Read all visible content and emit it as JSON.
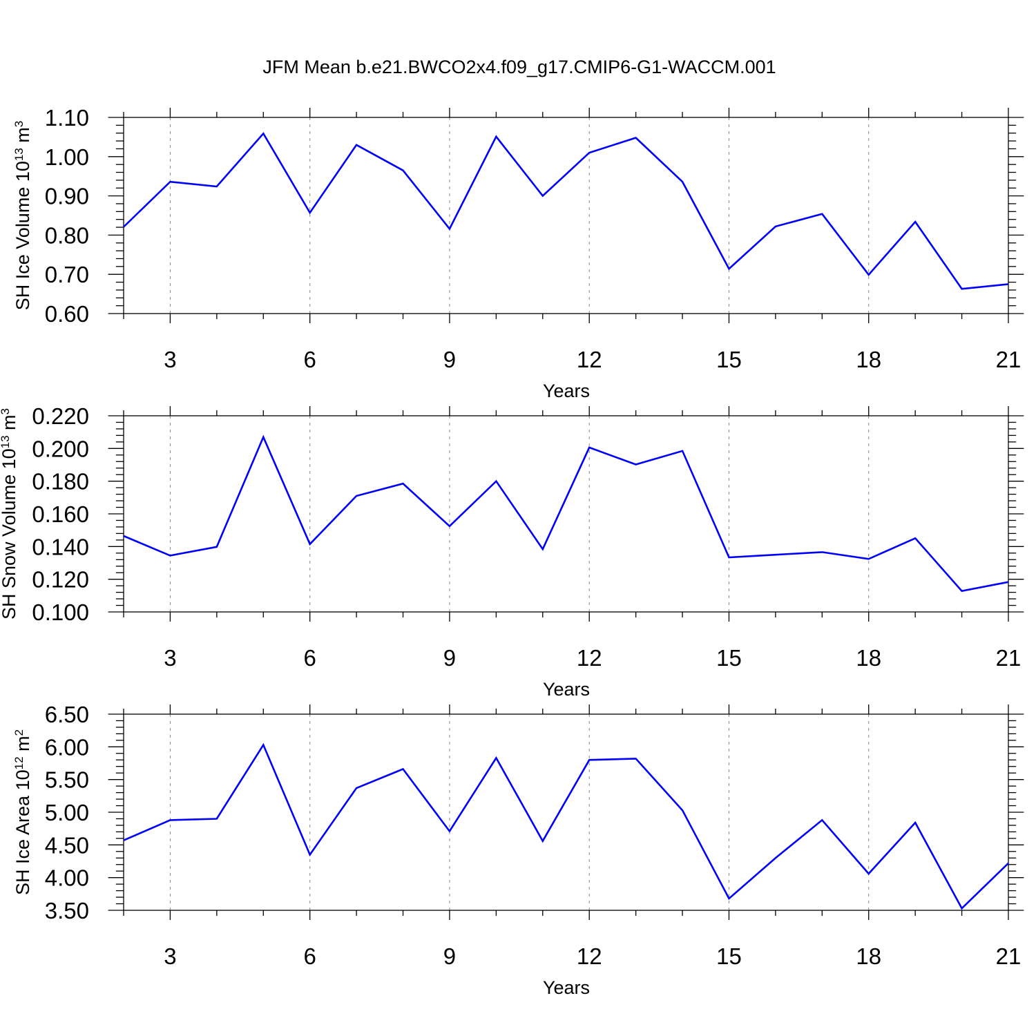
{
  "title": "JFM Mean b.e21.BWCO2x4.f09_g17.CMIP6-G1-WACCM.001",
  "colors": {
    "line": "#0000ff",
    "axis": "#000000",
    "grid": "#888888"
  },
  "chart_data": [
    {
      "type": "line",
      "ylabel": {
        "text": "SH Ice Volume 10",
        "sup": "13",
        "unit": " m",
        "unit_sup": "3"
      },
      "xlabel": "Years",
      "xlim": [
        2,
        21
      ],
      "ylim": [
        0.6,
        1.1
      ],
      "xticks": [
        "3",
        "6",
        "9",
        "12",
        "15",
        "18",
        "21"
      ],
      "yticks": [
        "0.60",
        "0.70",
        "0.80",
        "0.90",
        "1.00",
        "1.10"
      ],
      "grid": "vertical dashed at major x ticks",
      "x": [
        2,
        3,
        4,
        5,
        6,
        7,
        8,
        9,
        10,
        11,
        12,
        13,
        14,
        15,
        16,
        17,
        18,
        19,
        20,
        21
      ],
      "y": [
        0.821,
        0.936,
        0.924,
        1.059,
        0.857,
        1.03,
        0.965,
        0.816,
        1.051,
        0.9,
        1.01,
        1.048,
        0.936,
        0.714,
        0.822,
        0.854,
        0.699,
        0.834,
        0.663,
        0.675
      ]
    },
    {
      "type": "line",
      "ylabel": {
        "text": "SH Snow Volume 10",
        "sup": "13",
        "unit": " m",
        "unit_sup": "3"
      },
      "xlabel": "Years",
      "xlim": [
        2,
        21
      ],
      "ylim": [
        0.1,
        0.22
      ],
      "xticks": [
        "3",
        "6",
        "9",
        "12",
        "15",
        "18",
        "21"
      ],
      "yticks": [
        "0.100",
        "0.120",
        "0.140",
        "0.160",
        "0.180",
        "0.200",
        "0.220"
      ],
      "grid": "vertical dashed at major x ticks",
      "x": [
        2,
        3,
        4,
        5,
        6,
        7,
        8,
        9,
        10,
        11,
        12,
        13,
        14,
        15,
        16,
        17,
        18,
        19,
        20,
        21
      ],
      "y": [
        0.1465,
        0.1345,
        0.1398,
        0.207,
        0.1415,
        0.171,
        0.1785,
        0.1525,
        0.18,
        0.1384,
        0.2006,
        0.1902,
        0.1985,
        0.1334,
        0.135,
        0.1366,
        0.1324,
        0.1451,
        0.1128,
        0.1183
      ]
    },
    {
      "type": "line",
      "ylabel": {
        "text": "SH Ice Area 10",
        "sup": "12",
        "unit": " m",
        "unit_sup": "2"
      },
      "xlabel": "Years",
      "xlim": [
        2,
        21
      ],
      "ylim": [
        3.5,
        6.5
      ],
      "xticks": [
        "3",
        "6",
        "9",
        "12",
        "15",
        "18",
        "21"
      ],
      "yticks": [
        "3.50",
        "4.00",
        "4.50",
        "5.00",
        "5.50",
        "6.00",
        "6.50"
      ],
      "grid": "vertical dashed at major x ticks",
      "x": [
        2,
        3,
        4,
        5,
        6,
        7,
        8,
        9,
        10,
        11,
        12,
        13,
        14,
        15,
        16,
        17,
        18,
        19,
        20,
        21
      ],
      "y": [
        4.57,
        4.88,
        4.9,
        6.03,
        4.35,
        5.37,
        5.66,
        4.71,
        5.83,
        4.56,
        5.8,
        5.82,
        5.03,
        3.68,
        4.3,
        4.88,
        4.06,
        4.84,
        3.53,
        4.22
      ]
    }
  ]
}
